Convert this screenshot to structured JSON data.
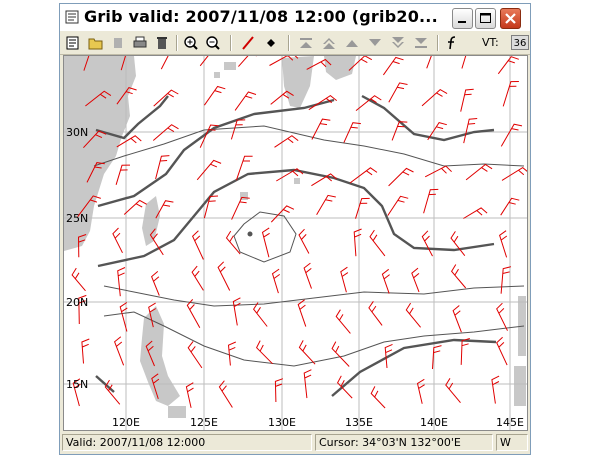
{
  "window": {
    "title": "Grib valid: 2007/11/08 12:00 (grib20..."
  },
  "toolbar": {
    "icons": [
      "properties-icon",
      "open-folder-icon",
      "save-icon",
      "print-icon",
      "delete-icon",
      "zoom-in-icon",
      "zoom-out-icon",
      "draw-line-icon",
      "diamond-point-icon",
      "first-icon",
      "previous-fast-icon",
      "previous-icon",
      "next-icon",
      "next-fast-icon",
      "last-icon",
      "function-icon"
    ],
    "vt_label": "VT:",
    "vt_value": "36"
  },
  "map": {
    "lat_labels": [
      "30N",
      "25N",
      "20N",
      "15N"
    ],
    "lon_labels": [
      "120E",
      "125E",
      "130E",
      "135E",
      "140E",
      "145E"
    ],
    "land_color": "#c8c8c8",
    "wind_color": "#e00000",
    "isobar_color": "#555555"
  },
  "status": {
    "valid": "Valid: 2007/11/08 12:000",
    "cursor": "Cursor: 34°03'N  132°00'E",
    "extra": "W"
  }
}
